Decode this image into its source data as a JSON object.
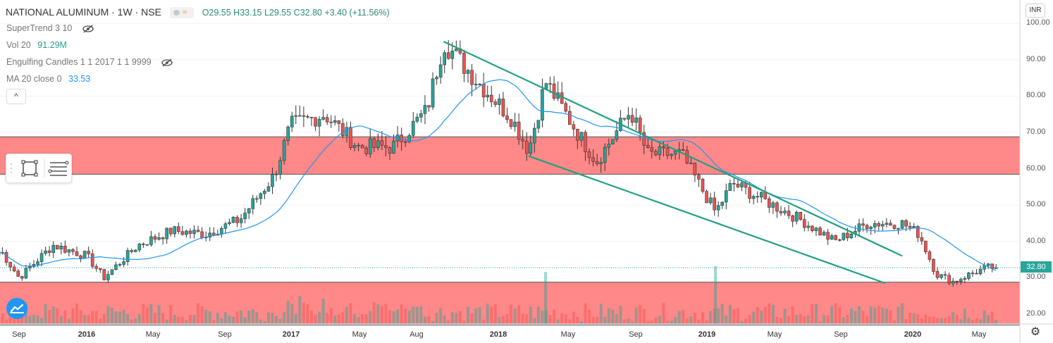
{
  "header": {
    "symbol": "NATIONAL ALUMINUM · 1W · NSE",
    "ohlc": "O29.55  H33.15  L29.55  C32.80  +3.40 (+11.56%)"
  },
  "indicators": [
    {
      "name": "SuperTrend 3 10",
      "value": ""
    },
    {
      "name": "Vol 20",
      "value": "91.29M"
    },
    {
      "name": "Engulfing Candles 1 1 2017 1 1 9999",
      "value": ""
    },
    {
      "name": "MA 20 close 0",
      "value": "33.53"
    }
  ],
  "collapse_glyph": "^",
  "currency_badge": "INR",
  "last_price_label": "32.80",
  "y_ticks": [
    "100.00",
    "90.00",
    "80.00",
    "70.00",
    "60.00",
    "50.00",
    "40.00",
    "30.00",
    "20.00"
  ],
  "x_ticks": [
    {
      "label": "Sep",
      "bold": false
    },
    {
      "label": "2016",
      "bold": true
    },
    {
      "label": "May",
      "bold": false
    },
    {
      "label": "Sep",
      "bold": false
    },
    {
      "label": "2017",
      "bold": true
    },
    {
      "label": "May",
      "bold": false
    },
    {
      "label": "Aug",
      "bold": false
    },
    {
      "label": "2018",
      "bold": true
    },
    {
      "label": "May",
      "bold": false
    },
    {
      "label": "Sep",
      "bold": false
    },
    {
      "label": "2019",
      "bold": true
    },
    {
      "label": "May",
      "bold": false
    },
    {
      "label": "Sep",
      "bold": false
    },
    {
      "label": "2020",
      "bold": true
    },
    {
      "label": "May",
      "bold": false
    }
  ],
  "colors": {
    "up": "#26a69a",
    "down": "#ef5350",
    "ma": "#2196f3",
    "zone": "#ff7b7b",
    "trendline": "#20a080",
    "brand": "#2196f3"
  },
  "icons": {
    "eye": "eye-crossed-icon",
    "rectangle": "rectangle-tool-icon",
    "lines": "fib-lines-icon",
    "settings": "gear-icon"
  },
  "chart_data": {
    "type": "candlestick",
    "y_range": [
      17,
      103
    ],
    "price_line": 32.8,
    "ma_period": 20,
    "zones": [
      {
        "from": 58.5,
        "to": 68.8
      },
      {
        "from": 17,
        "to": 28.8
      }
    ],
    "trendlines": [
      {
        "from": [
          "2017-10",
          95
        ],
        "to": [
          "2020-01",
          36
        ]
      },
      {
        "from": [
          "2018-03",
          63.5
        ],
        "to": [
          "2019-12",
          28.5
        ]
      }
    ],
    "waypoints": [
      {
        "date": "2015-08",
        "price": 37
      },
      {
        "date": "2015-09",
        "price": 30
      },
      {
        "date": "2015-11",
        "price": 39
      },
      {
        "date": "2016-01",
        "price": 36
      },
      {
        "date": "2016-02",
        "price": 30
      },
      {
        "date": "2016-04",
        "price": 39
      },
      {
        "date": "2016-06",
        "price": 43
      },
      {
        "date": "2016-08",
        "price": 42
      },
      {
        "date": "2016-10",
        "price": 46
      },
      {
        "date": "2016-12",
        "price": 58
      },
      {
        "date": "2017-01",
        "price": 72
      },
      {
        "date": "2017-03",
        "price": 75
      },
      {
        "date": "2017-05",
        "price": 66
      },
      {
        "date": "2017-07",
        "price": 66
      },
      {
        "date": "2017-09",
        "price": 76
      },
      {
        "date": "2017-10",
        "price": 95
      },
      {
        "date": "2017-12",
        "price": 84
      },
      {
        "date": "2018-02",
        "price": 74
      },
      {
        "date": "2018-03",
        "price": 65
      },
      {
        "date": "2018-04",
        "price": 84
      },
      {
        "date": "2018-06",
        "price": 69
      },
      {
        "date": "2018-07",
        "price": 62
      },
      {
        "date": "2018-09",
        "price": 76
      },
      {
        "date": "2018-10",
        "price": 64
      },
      {
        "date": "2018-12",
        "price": 64
      },
      {
        "date": "2019-01",
        "price": 56
      },
      {
        "date": "2019-02",
        "price": 48
      },
      {
        "date": "2019-03",
        "price": 56
      },
      {
        "date": "2019-05",
        "price": 51
      },
      {
        "date": "2019-07",
        "price": 46
      },
      {
        "date": "2019-09",
        "price": 40
      },
      {
        "date": "2019-11",
        "price": 45
      },
      {
        "date": "2020-01",
        "price": 45
      },
      {
        "date": "2020-02",
        "price": 42
      },
      {
        "date": "2020-03",
        "price": 31
      },
      {
        "date": "2020-04",
        "price": 29
      },
      {
        "date": "2020-05",
        "price": 31
      },
      {
        "date": "2020-06",
        "price": 32.8
      }
    ],
    "volume_spikes": [
      {
        "date": "2018-04",
        "height": 0.9
      },
      {
        "date": "2019-02",
        "height": 1.0
      }
    ]
  }
}
